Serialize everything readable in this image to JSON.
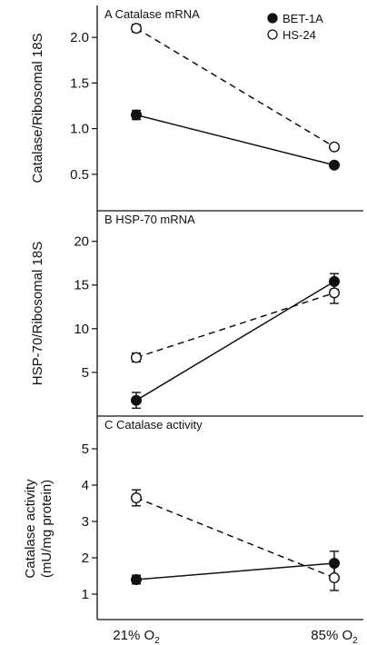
{
  "chart_data": [
    {
      "type": "line",
      "title": "A Catalase mRNA",
      "ylabel": "Catalase/Ribosomal 18S",
      "ylim": [
        0.1,
        2.35
      ],
      "yticks": [
        0.5,
        1.0,
        1.5,
        2.0
      ],
      "ytick_labels": [
        "0.5",
        "1.0",
        "1.5",
        "2.0"
      ],
      "categories": [
        "21% O2",
        "85% O2"
      ],
      "series": [
        {
          "name": "BET-1A",
          "values": [
            1.15,
            0.6
          ],
          "errors": [
            0.05,
            0.03
          ]
        },
        {
          "name": "HS-24",
          "values": [
            2.1,
            0.8
          ],
          "errors": [
            0.04,
            0.03
          ]
        }
      ]
    },
    {
      "type": "line",
      "title": "B HSP-70 mRNA",
      "ylabel": "HSP-70/Ribosomal 18S",
      "ylim": [
        0,
        23.5
      ],
      "yticks": [
        5,
        10,
        15,
        20
      ],
      "ytick_labels": [
        "5",
        "10",
        "15",
        "20"
      ],
      "categories": [
        "21% O2",
        "85% O2"
      ],
      "series": [
        {
          "name": "BET-1A",
          "values": [
            1.8,
            15.4
          ],
          "errors": [
            0.9,
            0.9
          ]
        },
        {
          "name": "HS-24",
          "values": [
            6.7,
            14.1
          ],
          "errors": [
            0.5,
            1.2
          ]
        }
      ]
    },
    {
      "type": "line",
      "title": "C Catalase activity",
      "ylabel": "Catalase activity (mU/mg protein)",
      "ylim": [
        0.3,
        5.9
      ],
      "yticks": [
        1,
        2,
        3,
        4,
        5
      ],
      "ytick_labels": [
        "1",
        "2",
        "3",
        "4",
        "5"
      ],
      "categories": [
        "21% O2",
        "85% O2"
      ],
      "series": [
        {
          "name": "BET-1A",
          "values": [
            1.4,
            1.85
          ],
          "errors": [
            0.12,
            0.33
          ]
        },
        {
          "name": "HS-24",
          "values": [
            3.65,
            1.45
          ],
          "errors": [
            0.22,
            0.35
          ]
        }
      ]
    }
  ],
  "legend": [
    {
      "label": "BET-1A",
      "marker": "filled-circle"
    },
    {
      "label": "HS-24",
      "marker": "open-circle"
    }
  ],
  "xaxis": {
    "labels": [
      {
        "main": "21% O",
        "sub": "2"
      },
      {
        "main": "85% O",
        "sub": "2"
      }
    ]
  },
  "style": {
    "BET-1A": {
      "line": "solid",
      "marker_fill": "#111111"
    },
    "HS-24": {
      "line": "dashed",
      "marker_fill": "#ffffff"
    },
    "ink": "#111111"
  }
}
